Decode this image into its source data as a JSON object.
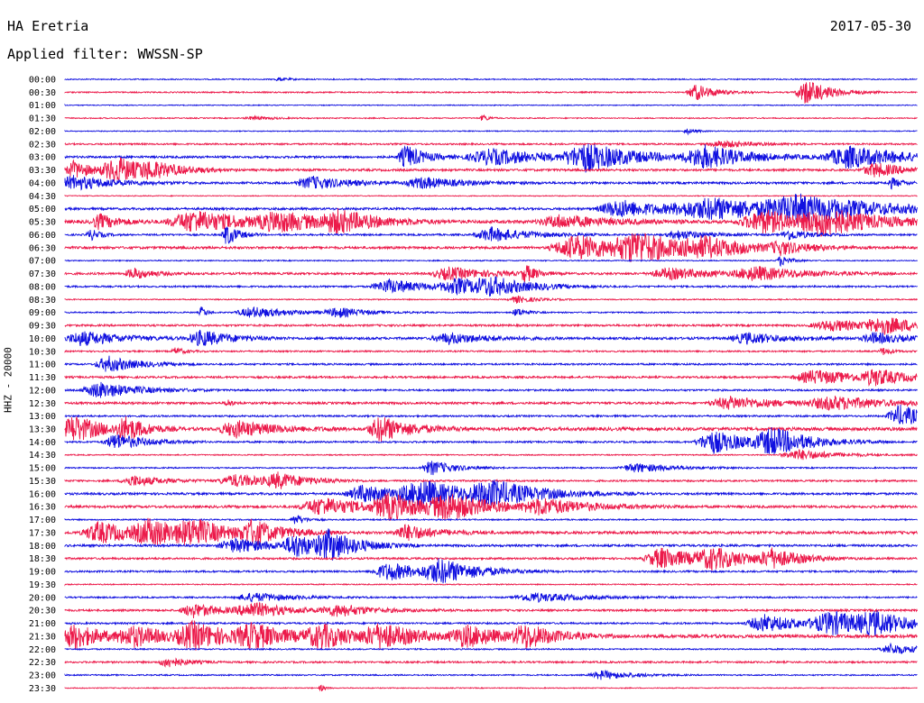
{
  "header": {
    "station": "HA Eretria",
    "date": "2017-05-30",
    "filter": "Applied filter: WWSSN-SP",
    "channel": "HHZ - 20000"
  },
  "chart_data": {
    "type": "line",
    "title": "HA Eretria",
    "date": "2017-05-30",
    "filter": "WWSSN-SP",
    "ylabel": "HHZ - 20000",
    "trace_colors": [
      "#1010e0",
      "#ec1a4a"
    ],
    "rows": [
      {
        "time": "00:00",
        "color": "#1010e0",
        "amp": 1.0,
        "bursts": [
          {
            "t": 0.25,
            "a": 2,
            "d": 0.01
          }
        ]
      },
      {
        "time": "00:30",
        "color": "#ec1a4a",
        "amp": 1.2,
        "bursts": [
          {
            "t": 0.74,
            "a": 9,
            "d": 0.02
          },
          {
            "t": 0.87,
            "a": 14,
            "d": 0.025
          }
        ]
      },
      {
        "time": "01:00",
        "color": "#1010e0",
        "amp": 0.8,
        "bursts": []
      },
      {
        "time": "01:30",
        "color": "#ec1a4a",
        "amp": 1.0,
        "bursts": [
          {
            "t": 0.49,
            "a": 4,
            "d": 0.006
          },
          {
            "t": 0.22,
            "a": 2,
            "d": 0.02
          }
        ]
      },
      {
        "time": "02:00",
        "color": "#1010e0",
        "amp": 0.8,
        "bursts": [
          {
            "t": 0.73,
            "a": 3,
            "d": 0.01
          }
        ]
      },
      {
        "time": "02:30",
        "color": "#ec1a4a",
        "amp": 1.5,
        "bursts": [
          {
            "t": 0.77,
            "a": 4,
            "d": 0.03
          }
        ]
      },
      {
        "time": "03:00",
        "color": "#1010e0",
        "amp": 2.0,
        "bursts": [
          {
            "t": 0.4,
            "a": 13,
            "d": 0.02
          },
          {
            "t": 0.5,
            "a": 9,
            "d": 0.06
          },
          {
            "t": 0.61,
            "a": 15,
            "d": 0.05
          },
          {
            "t": 0.75,
            "a": 12,
            "d": 0.05
          },
          {
            "t": 0.92,
            "a": 12,
            "d": 0.06
          }
        ]
      },
      {
        "time": "03:30",
        "color": "#ec1a4a",
        "amp": 2.0,
        "bursts": [
          {
            "t": 0.01,
            "a": 10,
            "d": 0.02
          },
          {
            "t": 0.06,
            "a": 14,
            "d": 0.035
          },
          {
            "t": 0.1,
            "a": 6,
            "d": 0.03
          },
          {
            "t": 0.95,
            "a": 8,
            "d": 0.03
          }
        ]
      },
      {
        "time": "04:00",
        "color": "#1010e0",
        "amp": 2.0,
        "bursts": [
          {
            "t": 0.01,
            "a": 8,
            "d": 0.04
          },
          {
            "t": 0.29,
            "a": 7,
            "d": 0.04
          },
          {
            "t": 0.42,
            "a": 6,
            "d": 0.04
          },
          {
            "t": 0.97,
            "a": 6,
            "d": 0.01
          }
        ]
      },
      {
        "time": "04:30",
        "color": "#ec1a4a",
        "amp": 0.8,
        "bursts": []
      },
      {
        "time": "05:00",
        "color": "#1010e0",
        "amp": 2.0,
        "bursts": [
          {
            "t": 0.65,
            "a": 10,
            "d": 0.05
          },
          {
            "t": 0.76,
            "a": 11,
            "d": 0.1
          },
          {
            "t": 0.86,
            "a": 12,
            "d": 0.08
          }
        ]
      },
      {
        "time": "05:30",
        "color": "#ec1a4a",
        "amp": 3.0,
        "bursts": [
          {
            "t": 0.04,
            "a": 8,
            "d": 0.02
          },
          {
            "t": 0.15,
            "a": 12,
            "d": 0.06
          },
          {
            "t": 0.25,
            "a": 9,
            "d": 0.05
          },
          {
            "t": 0.32,
            "a": 10,
            "d": 0.04
          },
          {
            "t": 0.58,
            "a": 7,
            "d": 0.05
          },
          {
            "t": 0.82,
            "a": 12,
            "d": 0.06
          },
          {
            "t": 0.89,
            "a": 12,
            "d": 0.05
          }
        ]
      },
      {
        "time": "06:00",
        "color": "#1010e0",
        "amp": 1.6,
        "bursts": [
          {
            "t": 0.03,
            "a": 6,
            "d": 0.01
          },
          {
            "t": 0.19,
            "a": 12,
            "d": 0.012
          },
          {
            "t": 0.5,
            "a": 8,
            "d": 0.04
          },
          {
            "t": 0.72,
            "a": 5,
            "d": 0.03
          },
          {
            "t": 0.85,
            "a": 6,
            "d": 0.02
          }
        ]
      },
      {
        "time": "06:30",
        "color": "#ec1a4a",
        "amp": 2.2,
        "bursts": [
          {
            "t": 0.6,
            "a": 14,
            "d": 0.06
          },
          {
            "t": 0.67,
            "a": 14,
            "d": 0.05
          },
          {
            "t": 0.75,
            "a": 8,
            "d": 0.05
          },
          {
            "t": 0.84,
            "a": 6,
            "d": 0.03
          }
        ]
      },
      {
        "time": "07:00",
        "color": "#1010e0",
        "amp": 1.0,
        "bursts": [
          {
            "t": 0.84,
            "a": 6,
            "d": 0.01
          }
        ]
      },
      {
        "time": "07:30",
        "color": "#ec1a4a",
        "amp": 2.0,
        "bursts": [
          {
            "t": 0.08,
            "a": 6,
            "d": 0.02
          },
          {
            "t": 0.45,
            "a": 7,
            "d": 0.04
          },
          {
            "t": 0.54,
            "a": 10,
            "d": 0.01
          },
          {
            "t": 0.71,
            "a": 6,
            "d": 0.05
          },
          {
            "t": 0.81,
            "a": 7,
            "d": 0.05
          }
        ]
      },
      {
        "time": "08:00",
        "color": "#1010e0",
        "amp": 1.6,
        "bursts": [
          {
            "t": 0.38,
            "a": 8,
            "d": 0.04
          },
          {
            "t": 0.46,
            "a": 8,
            "d": 0.04
          },
          {
            "t": 0.5,
            "a": 8,
            "d": 0.04
          }
        ]
      },
      {
        "time": "08:30",
        "color": "#ec1a4a",
        "amp": 1.0,
        "bursts": [
          {
            "t": 0.53,
            "a": 4,
            "d": 0.02
          }
        ]
      },
      {
        "time": "09:00",
        "color": "#1010e0",
        "amp": 1.2,
        "bursts": [
          {
            "t": 0.16,
            "a": 7,
            "d": 0.005
          },
          {
            "t": 0.22,
            "a": 6,
            "d": 0.04
          },
          {
            "t": 0.32,
            "a": 5,
            "d": 0.03
          },
          {
            "t": 0.53,
            "a": 5,
            "d": 0.01
          }
        ]
      },
      {
        "time": "09:30",
        "color": "#ec1a4a",
        "amp": 1.8,
        "bursts": [
          {
            "t": 0.9,
            "a": 6,
            "d": 0.05
          },
          {
            "t": 0.96,
            "a": 8,
            "d": 0.04
          }
        ]
      },
      {
        "time": "10:00",
        "color": "#1010e0",
        "amp": 2.2,
        "bursts": [
          {
            "t": 0.02,
            "a": 8,
            "d": 0.04
          },
          {
            "t": 0.16,
            "a": 9,
            "d": 0.03
          },
          {
            "t": 0.45,
            "a": 6,
            "d": 0.04
          },
          {
            "t": 0.8,
            "a": 6,
            "d": 0.04
          },
          {
            "t": 0.95,
            "a": 6,
            "d": 0.03
          }
        ]
      },
      {
        "time": "10:30",
        "color": "#ec1a4a",
        "amp": 1.4,
        "bursts": [
          {
            "t": 0.13,
            "a": 4,
            "d": 0.01
          },
          {
            "t": 0.96,
            "a": 4,
            "d": 0.01
          }
        ]
      },
      {
        "time": "11:00",
        "color": "#1010e0",
        "amp": 1.6,
        "bursts": [
          {
            "t": 0.05,
            "a": 9,
            "d": 0.03
          }
        ]
      },
      {
        "time": "11:30",
        "color": "#ec1a4a",
        "amp": 1.8,
        "bursts": [
          {
            "t": 0.88,
            "a": 8,
            "d": 0.05
          },
          {
            "t": 0.95,
            "a": 8,
            "d": 0.03
          }
        ]
      },
      {
        "time": "12:00",
        "color": "#1010e0",
        "amp": 1.6,
        "bursts": [
          {
            "t": 0.04,
            "a": 9,
            "d": 0.04
          }
        ]
      },
      {
        "time": "12:30",
        "color": "#ec1a4a",
        "amp": 2.0,
        "bursts": [
          {
            "t": 0.19,
            "a": 5,
            "d": 0.005
          },
          {
            "t": 0.78,
            "a": 7,
            "d": 0.05
          },
          {
            "t": 0.9,
            "a": 7,
            "d": 0.06
          }
        ]
      },
      {
        "time": "13:00",
        "color": "#1010e0",
        "amp": 1.6,
        "bursts": [
          {
            "t": 0.98,
            "a": 12,
            "d": 0.03
          }
        ]
      },
      {
        "time": "13:30",
        "color": "#ec1a4a",
        "amp": 3.0,
        "bursts": [
          {
            "t": 0.01,
            "a": 15,
            "d": 0.03
          },
          {
            "t": 0.07,
            "a": 12,
            "d": 0.02
          },
          {
            "t": 0.2,
            "a": 9,
            "d": 0.04
          },
          {
            "t": 0.37,
            "a": 14,
            "d": 0.03
          }
        ]
      },
      {
        "time": "14:00",
        "color": "#1010e0",
        "amp": 1.6,
        "bursts": [
          {
            "t": 0.06,
            "a": 9,
            "d": 0.03
          },
          {
            "t": 0.76,
            "a": 13,
            "d": 0.04
          },
          {
            "t": 0.83,
            "a": 14,
            "d": 0.04
          }
        ]
      },
      {
        "time": "14:30",
        "color": "#ec1a4a",
        "amp": 1.0,
        "bursts": [
          {
            "t": 0.86,
            "a": 6,
            "d": 0.04
          }
        ]
      },
      {
        "time": "15:00",
        "color": "#1010e0",
        "amp": 1.2,
        "bursts": [
          {
            "t": 0.43,
            "a": 8,
            "d": 0.025
          },
          {
            "t": 0.67,
            "a": 5,
            "d": 0.04
          }
        ]
      },
      {
        "time": "15:30",
        "color": "#ec1a4a",
        "amp": 1.6,
        "bursts": [
          {
            "t": 0.08,
            "a": 6,
            "d": 0.03
          },
          {
            "t": 0.2,
            "a": 7,
            "d": 0.04
          },
          {
            "t": 0.25,
            "a": 7,
            "d": 0.03
          }
        ]
      },
      {
        "time": "16:00",
        "color": "#1010e0",
        "amp": 2.0,
        "bursts": [
          {
            "t": 0.35,
            "a": 10,
            "d": 0.04
          },
          {
            "t": 0.42,
            "a": 13,
            "d": 0.06
          },
          {
            "t": 0.5,
            "a": 12,
            "d": 0.05
          }
        ]
      },
      {
        "time": "16:30",
        "color": "#ec1a4a",
        "amp": 2.2,
        "bursts": [
          {
            "t": 0.3,
            "a": 10,
            "d": 0.05
          },
          {
            "t": 0.38,
            "a": 13,
            "d": 0.04
          },
          {
            "t": 0.45,
            "a": 12,
            "d": 0.05
          },
          {
            "t": 0.56,
            "a": 8,
            "d": 0.05
          }
        ]
      },
      {
        "time": "17:00",
        "color": "#1010e0",
        "amp": 1.2,
        "bursts": [
          {
            "t": 0.27,
            "a": 6,
            "d": 0.01
          }
        ]
      },
      {
        "time": "17:30",
        "color": "#ec1a4a",
        "amp": 2.5,
        "bursts": [
          {
            "t": 0.04,
            "a": 12,
            "d": 0.04
          },
          {
            "t": 0.1,
            "a": 13,
            "d": 0.04
          },
          {
            "t": 0.15,
            "a": 11,
            "d": 0.04
          },
          {
            "t": 0.22,
            "a": 12,
            "d": 0.03
          },
          {
            "t": 0.4,
            "a": 9,
            "d": 0.03
          }
        ]
      },
      {
        "time": "18:00",
        "color": "#1010e0",
        "amp": 2.0,
        "bursts": [
          {
            "t": 0.2,
            "a": 8,
            "d": 0.04
          },
          {
            "t": 0.27,
            "a": 12,
            "d": 0.03
          },
          {
            "t": 0.31,
            "a": 14,
            "d": 0.03
          }
        ]
      },
      {
        "time": "18:30",
        "color": "#ec1a4a",
        "amp": 1.8,
        "bursts": [
          {
            "t": 0.7,
            "a": 12,
            "d": 0.04
          },
          {
            "t": 0.76,
            "a": 10,
            "d": 0.04
          },
          {
            "t": 0.83,
            "a": 9,
            "d": 0.03
          }
        ]
      },
      {
        "time": "19:00",
        "color": "#1010e0",
        "amp": 1.6,
        "bursts": [
          {
            "t": 0.38,
            "a": 10,
            "d": 0.04
          },
          {
            "t": 0.44,
            "a": 12,
            "d": 0.04
          }
        ]
      },
      {
        "time": "19:30",
        "color": "#ec1a4a",
        "amp": 1.0,
        "bursts": []
      },
      {
        "time": "20:00",
        "color": "#1010e0",
        "amp": 1.4,
        "bursts": [
          {
            "t": 0.22,
            "a": 5,
            "d": 0.04
          },
          {
            "t": 0.55,
            "a": 5,
            "d": 0.05
          }
        ]
      },
      {
        "time": "20:30",
        "color": "#ec1a4a",
        "amp": 1.8,
        "bursts": [
          {
            "t": 0.15,
            "a": 8,
            "d": 0.03
          },
          {
            "t": 0.22,
            "a": 8,
            "d": 0.04
          },
          {
            "t": 0.32,
            "a": 6,
            "d": 0.04
          }
        ]
      },
      {
        "time": "21:00",
        "color": "#1010e0",
        "amp": 1.6,
        "bursts": [
          {
            "t": 0.82,
            "a": 10,
            "d": 0.04
          },
          {
            "t": 0.9,
            "a": 12,
            "d": 0.05
          },
          {
            "t": 0.95,
            "a": 9,
            "d": 0.04
          }
        ]
      },
      {
        "time": "21:30",
        "color": "#ec1a4a",
        "amp": 3.0,
        "bursts": [
          {
            "t": 0.01,
            "a": 14,
            "d": 0.03
          },
          {
            "t": 0.08,
            "a": 10,
            "d": 0.04
          },
          {
            "t": 0.15,
            "a": 14,
            "d": 0.04
          },
          {
            "t": 0.22,
            "a": 12,
            "d": 0.04
          },
          {
            "t": 0.3,
            "a": 12,
            "d": 0.04
          },
          {
            "t": 0.37,
            "a": 12,
            "d": 0.04
          },
          {
            "t": 0.47,
            "a": 11,
            "d": 0.04
          },
          {
            "t": 0.54,
            "a": 12,
            "d": 0.03
          }
        ]
      },
      {
        "time": "22:00",
        "color": "#1010e0",
        "amp": 1.2,
        "bursts": [
          {
            "t": 0.97,
            "a": 6,
            "d": 0.03
          }
        ]
      },
      {
        "time": "22:30",
        "color": "#ec1a4a",
        "amp": 1.6,
        "bursts": [
          {
            "t": 0.12,
            "a": 6,
            "d": 0.02
          }
        ]
      },
      {
        "time": "23:00",
        "color": "#1010e0",
        "amp": 1.2,
        "bursts": [
          {
            "t": 0.63,
            "a": 5,
            "d": 0.03
          }
        ]
      },
      {
        "time": "23:30",
        "color": "#ec1a4a",
        "amp": 0.8,
        "bursts": [
          {
            "t": 0.3,
            "a": 4,
            "d": 0.005
          }
        ]
      }
    ]
  }
}
